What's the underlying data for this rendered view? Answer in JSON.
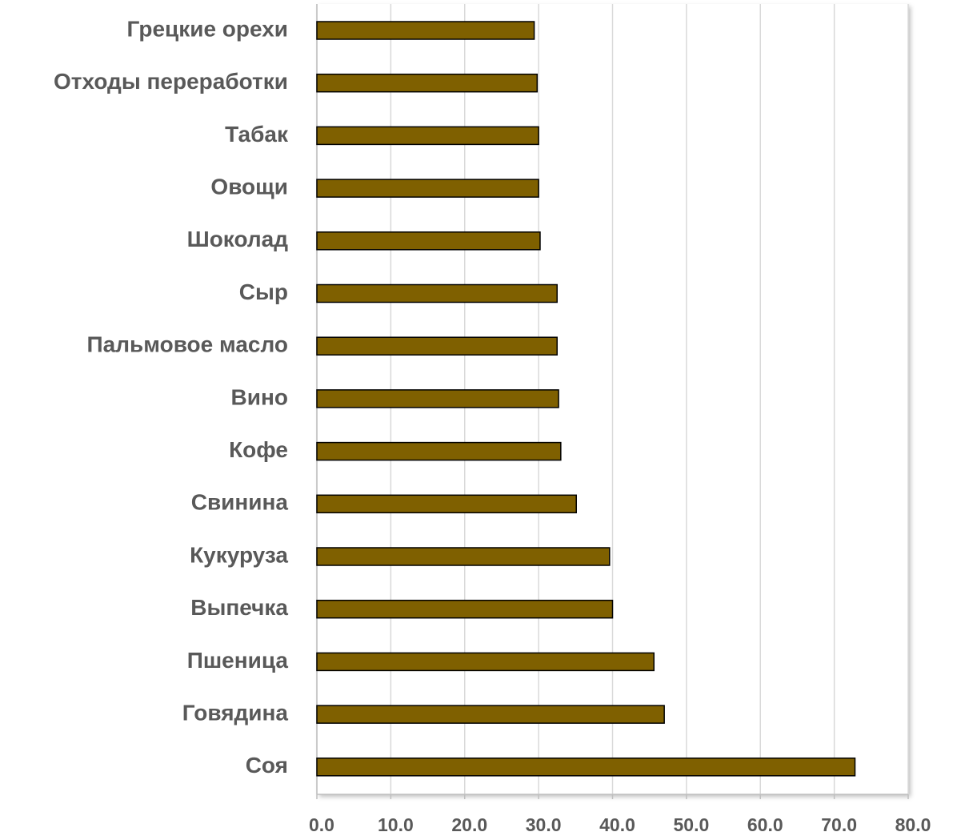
{
  "chart_data": {
    "type": "bar",
    "orientation": "horizontal",
    "categories": [
      "Грецкие орехи",
      "Отходы переработки",
      "Табак",
      "Овощи",
      "Шоколад",
      "Сыр",
      "Пальмовое масло",
      "Вино",
      "Кофе",
      "Свинина",
      "Кукуруза",
      "Выпечка",
      "Пшеница",
      "Говядина",
      "Соя"
    ],
    "values": [
      29.4,
      29.8,
      30.0,
      30.0,
      30.2,
      32.5,
      32.5,
      32.7,
      33.0,
      35.1,
      39.6,
      40.0,
      45.6,
      47.0,
      72.8
    ],
    "color": "#7f6000",
    "xlim": [
      0,
      80
    ],
    "xticks": [
      {
        "value": 0,
        "label": "0.0"
      },
      {
        "value": 10,
        "label": "10.0"
      },
      {
        "value": 20,
        "label": "20.0"
      },
      {
        "value": 30,
        "label": "30.0"
      },
      {
        "value": 40,
        "label": "40.0"
      },
      {
        "value": 50,
        "label": "50.0"
      },
      {
        "value": 60,
        "label": "60.0"
      },
      {
        "value": 70,
        "label": "70.0"
      },
      {
        "value": 80,
        "label": "80.0"
      }
    ],
    "grid": true
  }
}
